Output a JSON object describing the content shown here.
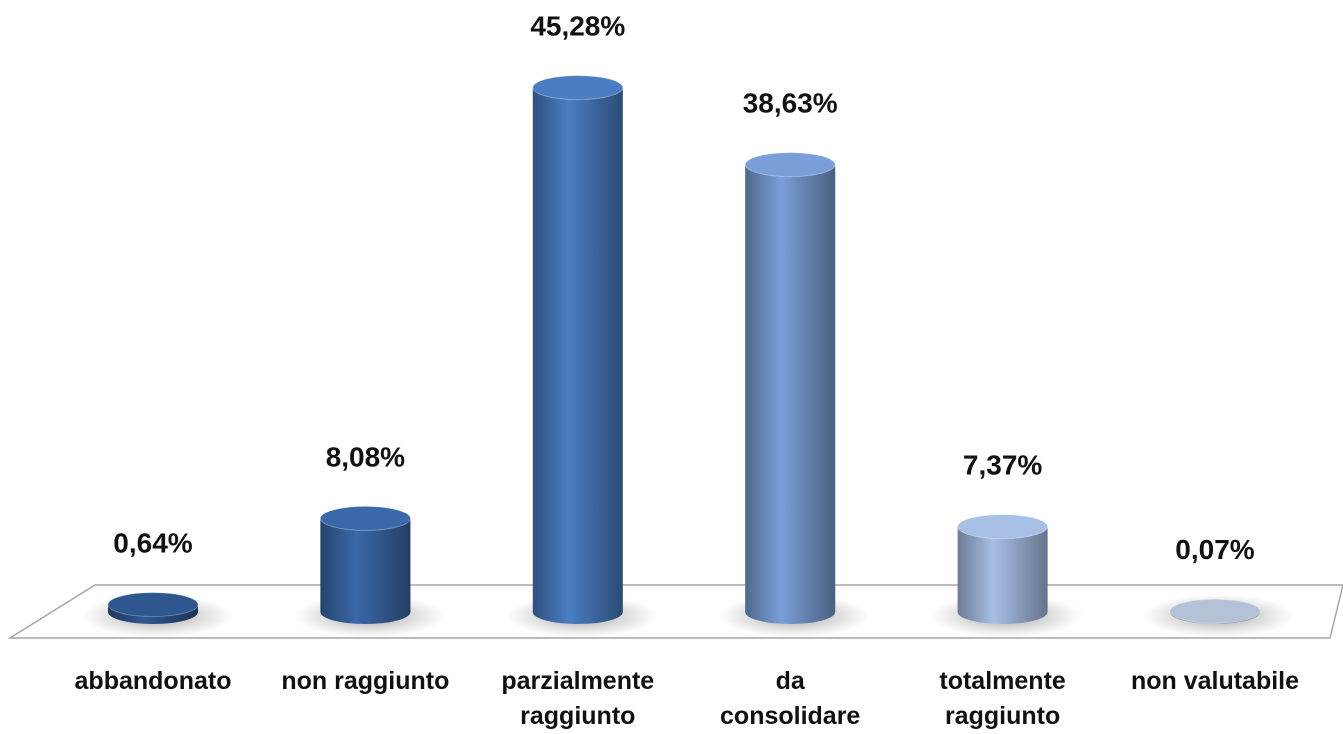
{
  "chart_data": {
    "type": "bar",
    "categories": [
      "abbandonato",
      "non raggiunto",
      "parzialmente\nraggiunto",
      "da\nconsolidare",
      "totalmente\nraggiunto",
      "non valutabile"
    ],
    "values": [
      0.64,
      8.08,
      45.28,
      38.63,
      7.37,
      0.07
    ],
    "value_labels": [
      "0,64%",
      "8,08%",
      "45,28%",
      "38,63%",
      "7,37%",
      "0,07%"
    ],
    "colors": [
      "#2e5790",
      "#3a68a8",
      "#4a7dc2",
      "#7a9fd8",
      "#a8bfe6",
      "#b4c2d8"
    ],
    "ylim": [
      0,
      50
    ]
  }
}
